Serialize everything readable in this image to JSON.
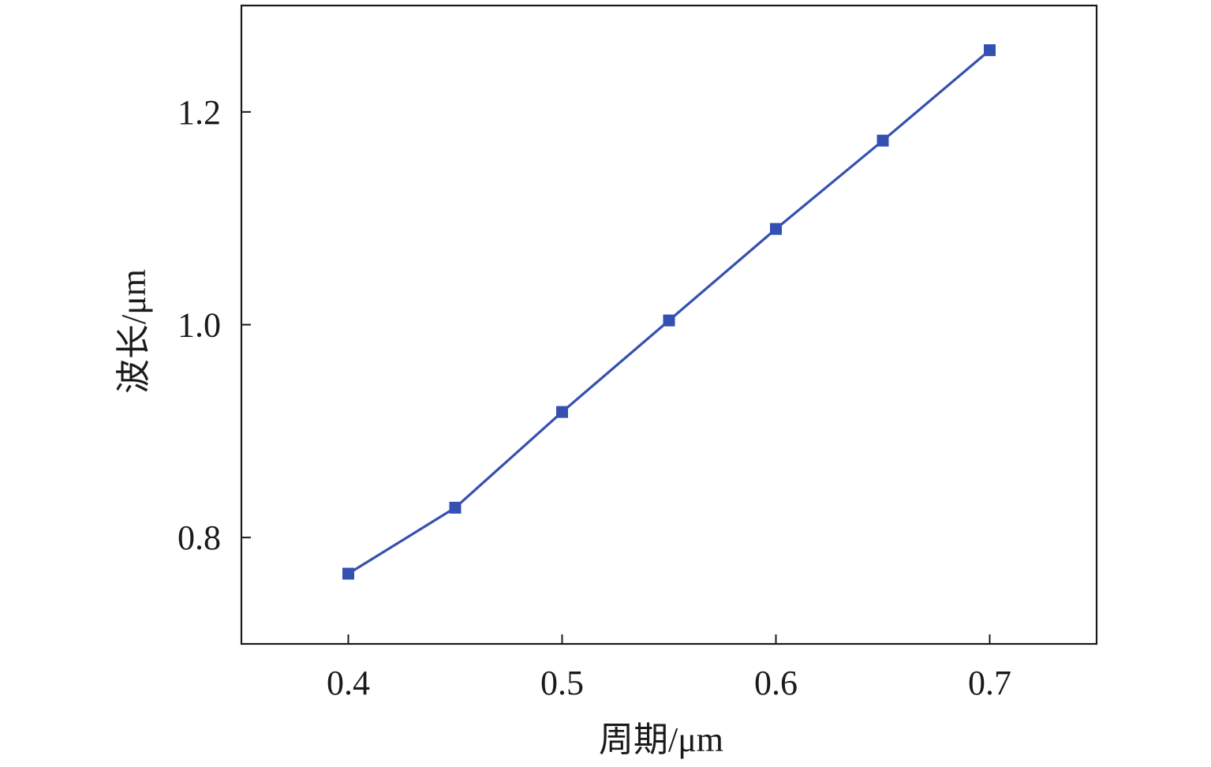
{
  "chart_data": {
    "type": "line",
    "title": "",
    "xlabel": "周期/μm",
    "ylabel": "波长/μm",
    "xlim": [
      0.35,
      0.75
    ],
    "ylim": [
      0.7,
      1.3
    ],
    "xticks": [
      0.4,
      0.5,
      0.6,
      0.7
    ],
    "yticks": [
      0.8,
      1.0,
      1.2
    ],
    "xtick_labels": [
      "0.4",
      "0.5",
      "0.6",
      "0.7"
    ],
    "ytick_labels": [
      "0.8",
      "1.0",
      "1.2"
    ],
    "grid": false,
    "series": [
      {
        "color": "#3451b2",
        "marker": "square",
        "x": [
          0.4,
          0.45,
          0.5,
          0.55,
          0.6,
          0.65,
          0.7
        ],
        "y": [
          0.766,
          0.828,
          0.918,
          1.004,
          1.09,
          1.173,
          1.258
        ]
      }
    ]
  }
}
